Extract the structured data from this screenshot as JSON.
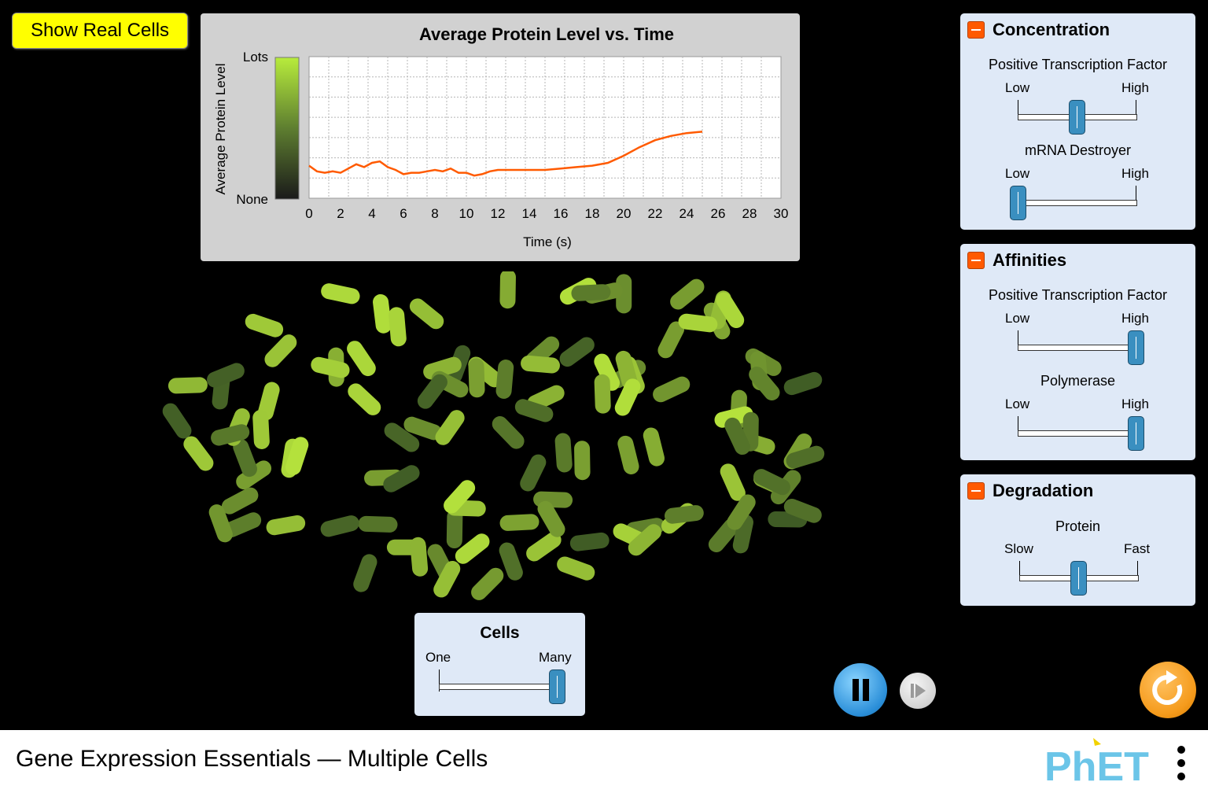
{
  "show_real_cells_label": "Show Real Cells",
  "chart": {
    "title": "Average Protein Level vs. Time",
    "y_axis_label": "Average Protein Level",
    "y_top": "Lots",
    "y_bottom": "None",
    "x_axis_label": "Time (s)",
    "x_ticks": [
      "0",
      "2",
      "4",
      "6",
      "8",
      "10",
      "12",
      "14",
      "16",
      "18",
      "20",
      "22",
      "24",
      "26",
      "28",
      "30"
    ],
    "line_color": "#ff5a00"
  },
  "chart_data": {
    "type": "line",
    "title": "Average Protein Level vs. Time",
    "xlabel": "Time (s)",
    "ylabel": "Average Protein Level",
    "xlim": [
      0,
      30
    ],
    "ylim": [
      0,
      1
    ],
    "grid": true,
    "series": [
      {
        "x": [
          0,
          0.5,
          1,
          1.5,
          2,
          2.5,
          3,
          3.5,
          4,
          4.5,
          5,
          5.5,
          6,
          6.5,
          7,
          7.5,
          8,
          8.5,
          9,
          9.5,
          10,
          10.5,
          11,
          11.5,
          12,
          13,
          14,
          15,
          16,
          17,
          18,
          19,
          20,
          21,
          22,
          23,
          24,
          25
        ],
        "values": [
          0.23,
          0.19,
          0.18,
          0.19,
          0.18,
          0.21,
          0.24,
          0.22,
          0.25,
          0.26,
          0.22,
          0.2,
          0.17,
          0.18,
          0.18,
          0.19,
          0.2,
          0.19,
          0.21,
          0.18,
          0.18,
          0.16,
          0.17,
          0.19,
          0.2,
          0.2,
          0.2,
          0.2,
          0.21,
          0.22,
          0.23,
          0.25,
          0.3,
          0.36,
          0.41,
          0.44,
          0.46,
          0.47
        ]
      }
    ]
  },
  "panels": {
    "concentration": {
      "title": "Concentration",
      "sliders": [
        {
          "label": "Positive Transcription Factor",
          "min": "Low",
          "max": "High",
          "value": 0.5
        },
        {
          "label": "mRNA Destroyer",
          "min": "Low",
          "max": "High",
          "value": 0.0
        }
      ]
    },
    "affinities": {
      "title": "Affinities",
      "sliders": [
        {
          "label": "Positive Transcription Factor",
          "min": "Low",
          "max": "High",
          "value": 1.0
        },
        {
          "label": "Polymerase",
          "min": "Low",
          "max": "High",
          "value": 1.0
        }
      ]
    },
    "degradation": {
      "title": "Degradation",
      "sliders": [
        {
          "label": "Protein",
          "min": "Slow",
          "max": "Fast",
          "value": 0.5
        }
      ]
    }
  },
  "cells_panel": {
    "title": "Cells",
    "min": "One",
    "max": "Many",
    "value": 1.0
  },
  "footer": {
    "title": "Gene Expression Essentials — Multiple Cells",
    "logo": "PhET"
  },
  "icons": {
    "pause": "pause-icon",
    "step": "step-forward-icon",
    "reset": "reset-icon",
    "menu": "more-vertical-icon"
  },
  "colors": {
    "panel_bg": "#dfe9f7",
    "button_yellow": "#ffff00",
    "slider_thumb": "#3a8fc0",
    "collapse": "#ff5a00",
    "cell_dark": "#3e5a25",
    "cell_light": "#b5e23c"
  }
}
